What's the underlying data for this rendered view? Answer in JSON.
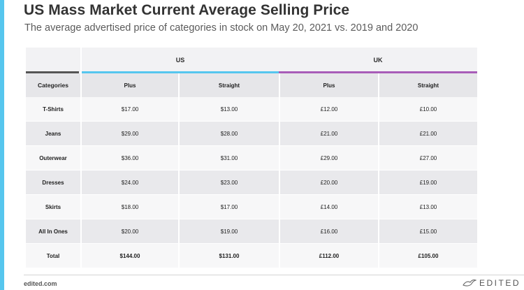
{
  "title": "US Mass Market Current Average Selling Price",
  "subtitle": "The average advertised price of categories in stock on May 20, 2021 vs. 2019 and 2020",
  "table": {
    "groups": {
      "us": "US",
      "uk": "UK"
    },
    "header": [
      "Categories",
      "Plus",
      "Straight",
      "Plus",
      "Straight"
    ],
    "rows": [
      [
        "T-Shirts",
        "$17.00",
        "$13.00",
        "£12.00",
        "£10.00"
      ],
      [
        "Jeans",
        "$29.00",
        "$28.00",
        "£21.00",
        "£21.00"
      ],
      [
        "Outerwear",
        "$36.00",
        "$31.00",
        "£29.00",
        "£27.00"
      ],
      [
        "Dresses",
        "$24.00",
        "$23.00",
        "£20.00",
        "£19.00"
      ],
      [
        "Skirts",
        "$18.00",
        "$17.00",
        "£14.00",
        "£13.00"
      ],
      [
        "All In Ones",
        "$20.00",
        "$19.00",
        "£16.00",
        "£15.00"
      ],
      [
        "Total",
        "$144.00",
        "$131.00",
        "£112.00",
        "£105.00"
      ]
    ]
  },
  "footer": {
    "url": "edited.com",
    "logo_text": "EDITED",
    "logo_icon": "edited-bird-icon"
  },
  "colors": {
    "accent_left_bar": "#56c6ee",
    "us_line": "#56c6ee",
    "uk_line": "#a85cb8",
    "categories_line": "#555555"
  }
}
